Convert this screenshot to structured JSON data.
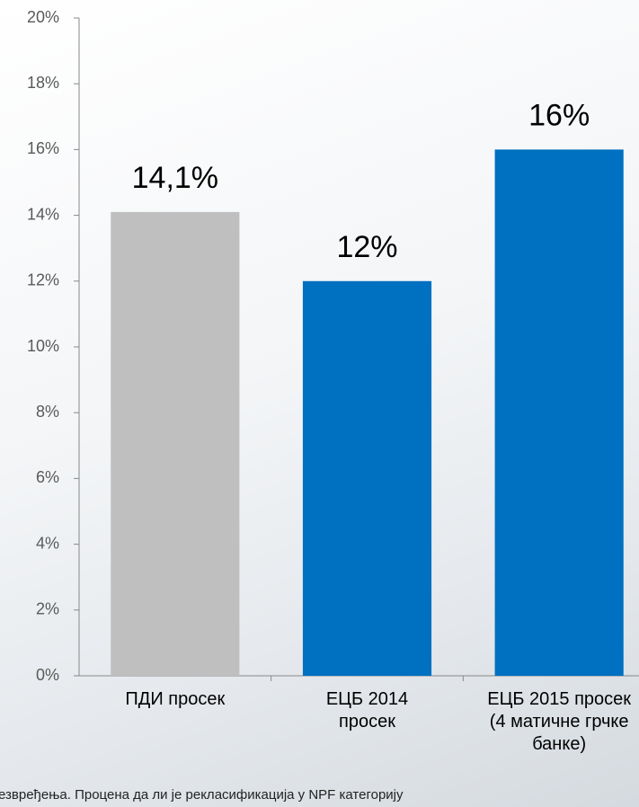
{
  "chart_data": {
    "type": "bar",
    "categories": [
      "ПДИ просек",
      "ЕЦБ 2014 просек",
      "ЕЦБ 2015 просек (4 матичне грчке банке)"
    ],
    "values": [
      14.1,
      12,
      16
    ],
    "value_labels": [
      "14,1%",
      "12%",
      "16%"
    ],
    "colors": [
      "#bfbfbf",
      "#0070c0",
      "#0070c0"
    ],
    "ylim": [
      0,
      20
    ],
    "yticks": [
      {
        "value": 0,
        "label": "0%"
      },
      {
        "value": 2,
        "label": "2%"
      },
      {
        "value": 4,
        "label": "4%"
      },
      {
        "value": 6,
        "label": "6%"
      },
      {
        "value": 8,
        "label": "8%"
      },
      {
        "value": 10,
        "label": "10%"
      },
      {
        "value": 12,
        "label": "12%"
      },
      {
        "value": 14,
        "label": "14%"
      },
      {
        "value": 16,
        "label": "16%"
      },
      {
        "value": 18,
        "label": "18%"
      },
      {
        "value": 20,
        "label": "20%"
      }
    ],
    "grid": false,
    "footnote": "езвређења. Процена да ли је рекласификација у NPF категорију"
  }
}
